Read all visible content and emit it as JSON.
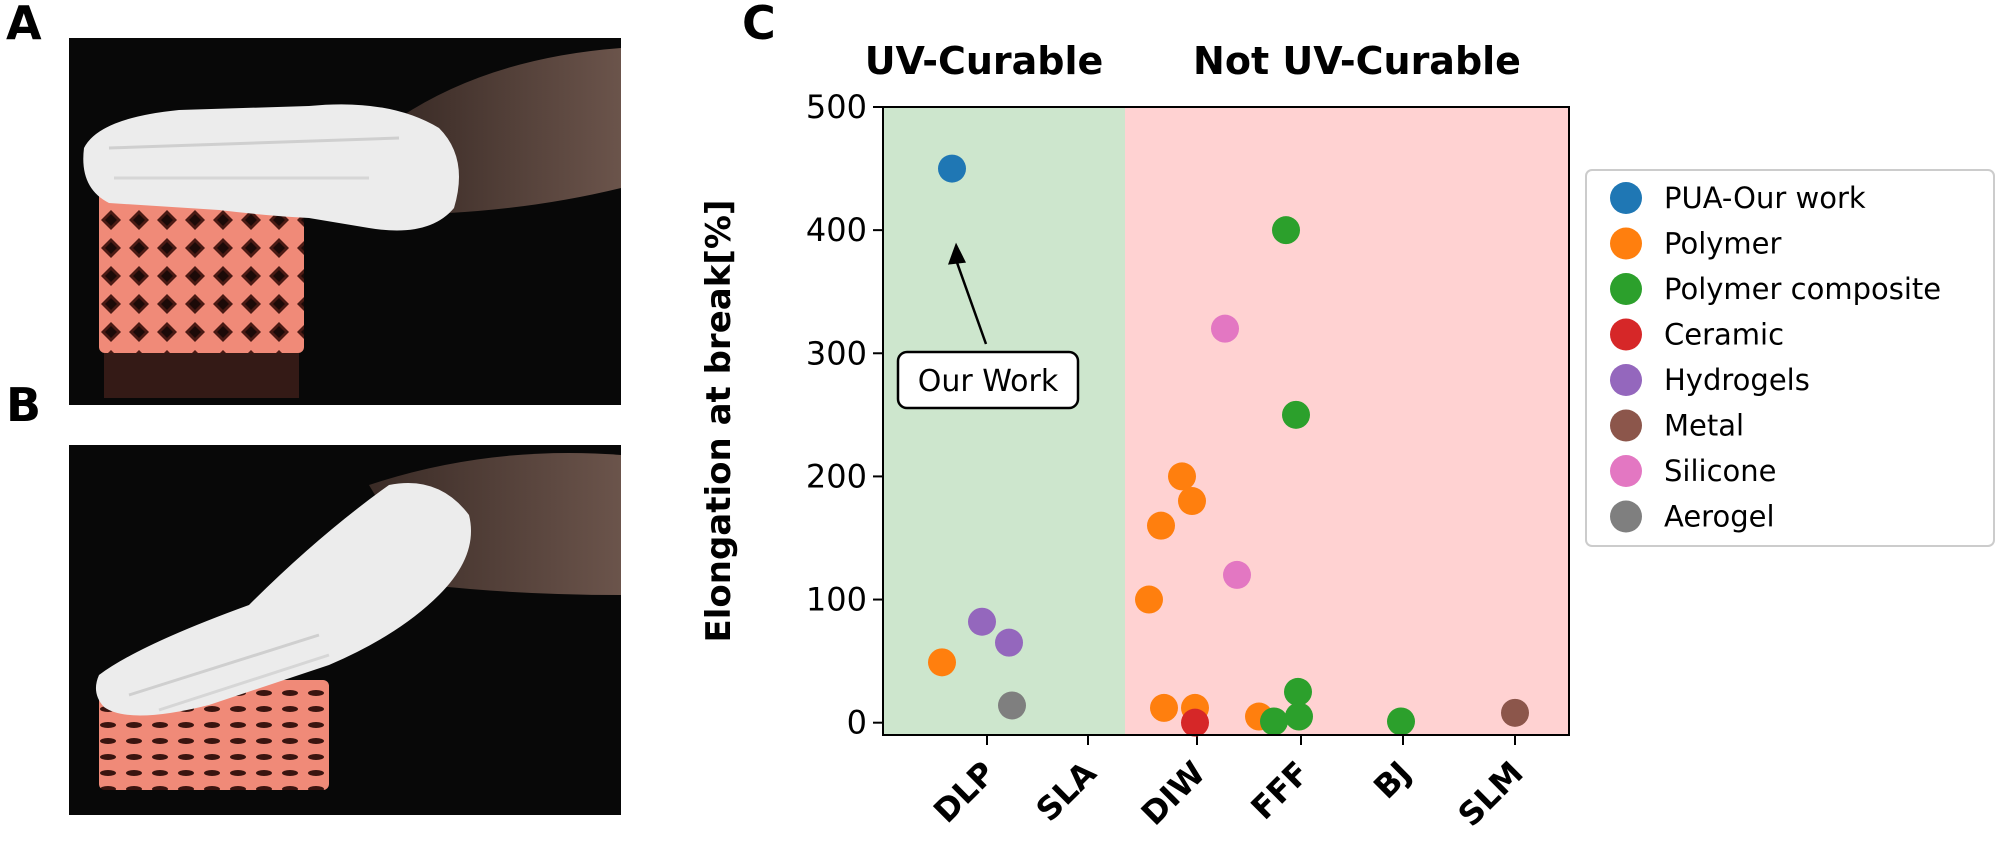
{
  "panels": {
    "a": "A",
    "b": "B",
    "c": "C"
  },
  "photos": {
    "a": {
      "description_icon": "hand-on-uncompressed-lattice-photo"
    },
    "b": {
      "description_icon": "hand-compressing-lattice-photo"
    }
  },
  "colors": {
    "uv_region": "#cde6cd",
    "not_uv_region": "#ffd2d2",
    "pua": "#1f77b4",
    "polymer": "#ff7f0e",
    "polymer_composite": "#2ca02c",
    "ceramic": "#d62728",
    "hydrogels": "#9467bd",
    "metal": "#8c564b",
    "silicone": "#e377c2",
    "aerogel": "#7f7f7f",
    "lattice": "#f08a78"
  },
  "chart_data": {
    "type": "scatter",
    "region_labels": [
      "UV-Curable",
      "Not UV-Curable"
    ],
    "ylabel": "Elongation at break[%]",
    "xlabel": "",
    "categories": [
      "DLP",
      "SLA",
      "DIW",
      "FFF",
      "BJ",
      "SLM"
    ],
    "ylim": [
      -10,
      500
    ],
    "yticks": [
      0,
      100,
      200,
      300,
      400,
      500
    ],
    "legend_position": "right",
    "annotation": {
      "text": "Our Work",
      "target": {
        "x": "DLP",
        "y": 450
      }
    },
    "series": [
      {
        "name": "PUA-Our work",
        "color_key": "pua",
        "points": [
          {
            "x": "DLP",
            "jitter": -0.35,
            "y": 450
          }
        ]
      },
      {
        "name": "Polymer",
        "color_key": "polymer",
        "points": [
          {
            "x": "DLP",
            "jitter": -0.45,
            "y": 49
          },
          {
            "x": "DIW",
            "jitter": -0.48,
            "y": 100
          },
          {
            "x": "DIW",
            "jitter": -0.36,
            "y": 160
          },
          {
            "x": "DIW",
            "jitter": -0.15,
            "y": 200
          },
          {
            "x": "DIW",
            "jitter": -0.05,
            "y": 180
          },
          {
            "x": "DIW",
            "jitter": -0.33,
            "y": 12
          },
          {
            "x": "DIW",
            "jitter": -0.02,
            "y": 12
          },
          {
            "x": "FFF",
            "jitter": -0.42,
            "y": 5
          }
        ]
      },
      {
        "name": "Polymer composite",
        "color_key": "polymer_composite",
        "points": [
          {
            "x": "FFF",
            "jitter": -0.15,
            "y": 400
          },
          {
            "x": "FFF",
            "jitter": -0.05,
            "y": 250
          },
          {
            "x": "FFF",
            "jitter": -0.03,
            "y": 25
          },
          {
            "x": "FFF",
            "jitter": -0.27,
            "y": 1
          },
          {
            "x": "FFF",
            "jitter": -0.02,
            "y": 5
          },
          {
            "x": "BJ",
            "jitter": -0.02,
            "y": 1
          }
        ]
      },
      {
        "name": "Ceramic",
        "color_key": "ceramic",
        "points": [
          {
            "x": "DIW",
            "jitter": -0.02,
            "y": 0
          }
        ]
      },
      {
        "name": "Hydrogels",
        "color_key": "hydrogels",
        "points": [
          {
            "x": "DLP",
            "jitter": -0.05,
            "y": 82
          },
          {
            "x": "DLP",
            "jitter": 0.22,
            "y": 65
          }
        ]
      },
      {
        "name": "Metal",
        "color_key": "metal",
        "points": [
          {
            "x": "SLM",
            "jitter": 0.0,
            "y": 8
          }
        ]
      },
      {
        "name": "Silicone",
        "color_key": "silicone",
        "points": [
          {
            "x": "DIW",
            "jitter": 0.28,
            "y": 320
          },
          {
            "x": "DIW",
            "jitter": 0.4,
            "y": 120
          }
        ]
      },
      {
        "name": "Aerogel",
        "color_key": "aerogel",
        "points": [
          {
            "x": "DLP",
            "jitter": 0.25,
            "y": 14
          }
        ]
      }
    ]
  }
}
